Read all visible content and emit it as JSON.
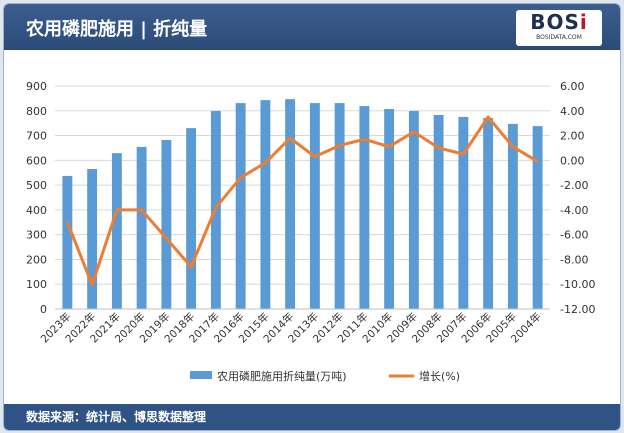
{
  "header": {
    "title": "农用磷肥施用 | 折纯量",
    "logo": "BOSI",
    "logo_sub": "BOSIDATA.COM"
  },
  "footer": {
    "source": "数据来源：统计局、博思数据整理"
  },
  "colors": {
    "bar": "#5b9bd5",
    "line": "#ed7d31",
    "header": "#2f5385"
  },
  "chart_data": {
    "type": "bar+line",
    "categories": [
      "2023年",
      "2022年",
      "2021年",
      "2020年",
      "2019年",
      "2018年",
      "2017年",
      "2016年",
      "2015年",
      "2014年",
      "2013年",
      "2012年",
      "2011年",
      "2010年",
      "2009年",
      "2008年",
      "2007年",
      "2006年",
      "2005年",
      "2004年"
    ],
    "series": [
      {
        "name": "农用磷肥施用折纯量(万吨)",
        "type": "bar",
        "axis": "left",
        "values": [
          537,
          565,
          629,
          654,
          682,
          730,
          799,
          831,
          843,
          847,
          831,
          831,
          819,
          807,
          799,
          783,
          775,
          771,
          747,
          738
        ]
      },
      {
        "name": "增长(%)",
        "type": "line",
        "axis": "right",
        "values": [
          -4.98,
          -10.06,
          -4.0,
          -4.0,
          -6.3,
          -8.6,
          -3.8,
          -1.4,
          -0.2,
          1.8,
          0.3,
          1.2,
          1.7,
          1.1,
          2.3,
          1.0,
          0.5,
          3.5,
          1.1,
          -0.1
        ]
      }
    ],
    "left_axis": {
      "range": [
        0,
        900
      ],
      "ticks": [
        "0",
        "100",
        "200",
        "300",
        "400",
        "500",
        "600",
        "700",
        "800",
        "900"
      ]
    },
    "right_axis": {
      "range": [
        -12,
        6
      ],
      "ticks": [
        "-12.00",
        "-10.00",
        "-8.00",
        "-6.00",
        "-4.00",
        "-2.00",
        "0.00",
        "2.00",
        "4.00",
        "6.00"
      ]
    },
    "grid": true,
    "legend": "bottom"
  }
}
